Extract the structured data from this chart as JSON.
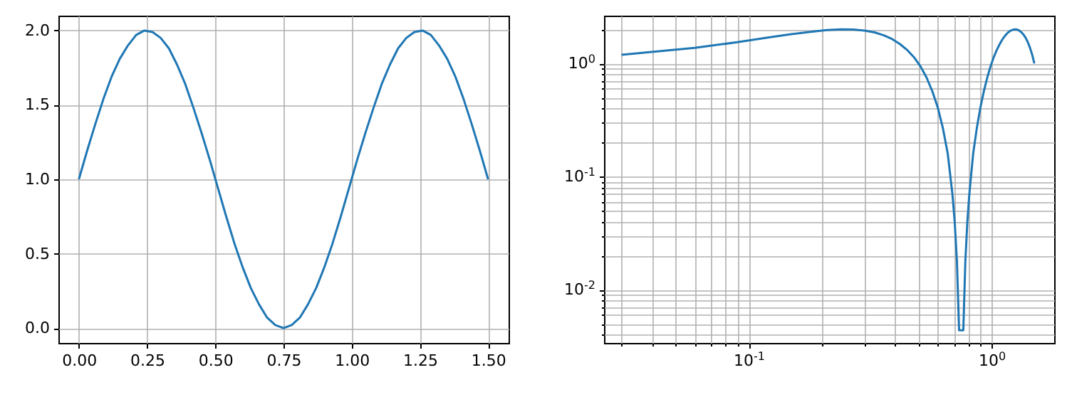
{
  "chart_data": [
    {
      "type": "line",
      "x": [
        0,
        0.03,
        0.06,
        0.09,
        0.12,
        0.15,
        0.18,
        0.21,
        0.24,
        0.27,
        0.3,
        0.33,
        0.36,
        0.39,
        0.42,
        0.45,
        0.48,
        0.51,
        0.54,
        0.57,
        0.6,
        0.63,
        0.66,
        0.69,
        0.72,
        0.75,
        0.78,
        0.81,
        0.84,
        0.87,
        0.9,
        0.93,
        0.96,
        0.99,
        1.02,
        1.05,
        1.08,
        1.11,
        1.14,
        1.17,
        1.2,
        1.23,
        1.26,
        1.29,
        1.32,
        1.35,
        1.38,
        1.41,
        1.44,
        1.47,
        1.5
      ],
      "series": [
        {
          "color": "#1f77b4",
          "values": [
            1,
            1.19,
            1.37,
            1.54,
            1.69,
            1.81,
            1.9,
            1.97,
            2,
            1.99,
            1.95,
            1.88,
            1.77,
            1.64,
            1.48,
            1.31,
            1.13,
            0.94,
            0.75,
            0.57,
            0.41,
            0.27,
            0.16,
            0.07,
            0.02,
            0,
            0.02,
            0.07,
            0.16,
            0.27,
            0.41,
            0.57,
            0.75,
            0.94,
            1.13,
            1.31,
            1.48,
            1.64,
            1.77,
            1.88,
            1.95,
            1.99,
            2,
            1.97,
            1.9,
            1.81,
            1.69,
            1.54,
            1.37,
            1.19,
            1
          ]
        }
      ],
      "xlim": [
        -0.075,
        1.575
      ],
      "ylim": [
        -0.1,
        2.1
      ],
      "xticks": [
        {
          "value": 0,
          "label": "0.00"
        },
        0.25,
        {
          "value": 0.5,
          "label": "0.50"
        },
        0.75,
        {
          "value": 1,
          "label": "1.00"
        },
        1.25,
        {
          "value": 1.5,
          "label": "1.50"
        }
      ],
      "yticks": [
        {
          "value": 0,
          "label": "0.0"
        },
        0.5,
        {
          "value": 1,
          "label": "1.0"
        },
        1.5,
        {
          "value": 2,
          "label": "2.0"
        }
      ],
      "grid": true
    },
    {
      "type": "line",
      "log": "xy",
      "x": [
        0.03,
        0.06,
        0.09,
        0.12,
        0.15,
        0.18,
        0.21,
        0.24,
        0.27,
        0.3,
        0.33,
        0.36,
        0.39,
        0.42,
        0.45,
        0.48,
        0.51,
        0.54,
        0.57,
        0.6,
        0.63,
        0.66,
        0.69,
        0.705,
        0.72,
        0.735,
        0.765,
        0.78,
        0.795,
        0.81,
        0.84,
        0.87,
        0.9,
        0.93,
        0.96,
        0.99,
        1.02,
        1.05,
        1.08,
        1.11,
        1.14,
        1.17,
        1.2,
        1.23,
        1.26,
        1.29,
        1.32,
        1.35,
        1.38,
        1.41,
        1.44,
        1.47,
        1.5
      ],
      "series": [
        {
          "color": "#1f77b4",
          "values": [
            1.19,
            1.37,
            1.54,
            1.69,
            1.81,
            1.9,
            1.97,
            2,
            1.99,
            1.95,
            1.88,
            1.77,
            1.64,
            1.48,
            1.31,
            1.13,
            0.94,
            0.75,
            0.57,
            0.41,
            0.27,
            0.16,
            0.07,
            0.04,
            0.018,
            0.0044,
            0.0044,
            0.018,
            0.04,
            0.07,
            0.16,
            0.27,
            0.41,
            0.57,
            0.75,
            0.94,
            1.13,
            1.31,
            1.48,
            1.64,
            1.77,
            1.88,
            1.95,
            1.99,
            2,
            1.97,
            1.9,
            1.81,
            1.69,
            1.54,
            1.37,
            1.19,
            1
          ]
        }
      ],
      "xlim": [
        0.0254,
        1.81
      ],
      "ylim": [
        0.0034,
        2.64
      ],
      "xticks": [
        {
          "value": 0.03,
          "label": null
        },
        {
          "value": 0.04,
          "label": null
        },
        {
          "value": 0.05,
          "label": null
        },
        {
          "value": 0.06,
          "label": null
        },
        {
          "value": 0.07,
          "label": null
        },
        {
          "value": 0.08,
          "label": null
        },
        {
          "value": 0.09,
          "label": null
        },
        {
          "value": 0.1,
          "label": "10$^{-1}$"
        },
        {
          "value": 0.2,
          "label": null
        },
        {
          "value": 0.3,
          "label": null
        },
        {
          "value": 0.4,
          "label": null
        },
        {
          "value": 0.5,
          "label": null
        },
        {
          "value": 0.6,
          "label": null
        },
        {
          "value": 0.7,
          "label": null
        },
        {
          "value": 0.8,
          "label": null
        },
        {
          "value": 0.9,
          "label": null
        },
        {
          "value": 1,
          "label": "10$^{0}$"
        }
      ],
      "yticks": [
        {
          "value": 0.004,
          "label": null
        },
        {
          "value": 0.005,
          "label": null
        },
        {
          "value": 0.006,
          "label": null
        },
        {
          "value": 0.007,
          "label": null
        },
        {
          "value": 0.008,
          "label": null
        },
        {
          "value": 0.009,
          "label": null
        },
        {
          "value": 0.01,
          "label": "10$^{-2}$"
        },
        {
          "value": 0.02,
          "label": null
        },
        {
          "value": 0.03,
          "label": null
        },
        {
          "value": 0.04,
          "label": null
        },
        {
          "value": 0.05,
          "label": null
        },
        {
          "value": 0.06,
          "label": null
        },
        {
          "value": 0.07,
          "label": null
        },
        {
          "value": 0.08,
          "label": null
        },
        {
          "value": 0.09,
          "label": null
        },
        {
          "value": 0.1,
          "label": "10$^{-1}$"
        },
        {
          "value": 0.2,
          "label": null
        },
        {
          "value": 0.3,
          "label": null
        },
        {
          "value": 0.4,
          "label": null
        },
        {
          "value": 0.5,
          "label": null
        },
        {
          "value": 0.6,
          "label": null
        },
        {
          "value": 0.7,
          "label": null
        },
        {
          "value": 0.8,
          "label": null
        },
        {
          "value": 0.9,
          "label": null
        },
        {
          "value": 1,
          "label": "10$^{0}$"
        },
        {
          "value": 2,
          "label": null
        }
      ],
      "grid": true
    }
  ]
}
